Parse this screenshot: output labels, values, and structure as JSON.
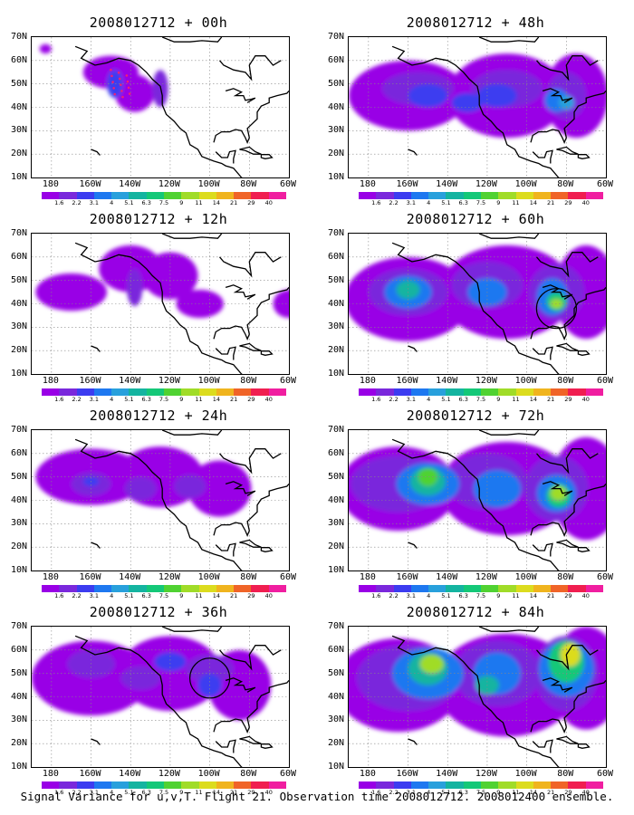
{
  "figure": {
    "caption": "Signal Variance for u,v,T. Flight 21. Observation time 2008012712. 2008012400 ensemble."
  },
  "axes": {
    "lat_labels": [
      "70N",
      "60N",
      "50N",
      "40N",
      "30N",
      "20N",
      "10N"
    ],
    "lon_labels": [
      "180",
      "160W",
      "140W",
      "120W",
      "100W",
      "80W",
      "60W"
    ],
    "lat_range": [
      10,
      70
    ],
    "lon_range_west": [
      -190,
      -60
    ],
    "grid": "dotted"
  },
  "colorbar": {
    "labels": [
      "1.6",
      "2.2",
      "3.1",
      "4",
      "5.1",
      "6.3",
      "7.5",
      "9",
      "11",
      "14",
      "21",
      "29",
      "40"
    ],
    "colors": [
      "#9900e6",
      "#7a28dc",
      "#3c3cf0",
      "#1e78f0",
      "#28a0dc",
      "#14b4a0",
      "#14c878",
      "#50d232",
      "#a0dc28",
      "#dcdc1e",
      "#f0b41e",
      "#f06428",
      "#f01e50",
      "#f01ea0"
    ]
  },
  "panels": [
    {
      "title": "2008012712 + 00h",
      "coverage": 0.22,
      "peak_level": 4,
      "features": "observation track"
    },
    {
      "title": "2008012712 + 12h",
      "coverage": 0.38,
      "peak_level": 4
    },
    {
      "title": "2008012712 + 24h",
      "coverage": 0.5,
      "peak_level": 5
    },
    {
      "title": "2008012712 + 36h",
      "coverage": 0.6,
      "peak_level": 6,
      "features": "circle marker"
    },
    {
      "title": "2008012712 + 48h",
      "coverage": 0.62,
      "peak_level": 7
    },
    {
      "title": "2008012712 + 60h",
      "coverage": 0.75,
      "peak_level": 9,
      "features": "circle marker"
    },
    {
      "title": "2008012712 + 72h",
      "coverage": 0.82,
      "peak_level": 10
    },
    {
      "title": "2008012712 + 84h",
      "coverage": 0.88,
      "peak_level": 10
    }
  ]
}
